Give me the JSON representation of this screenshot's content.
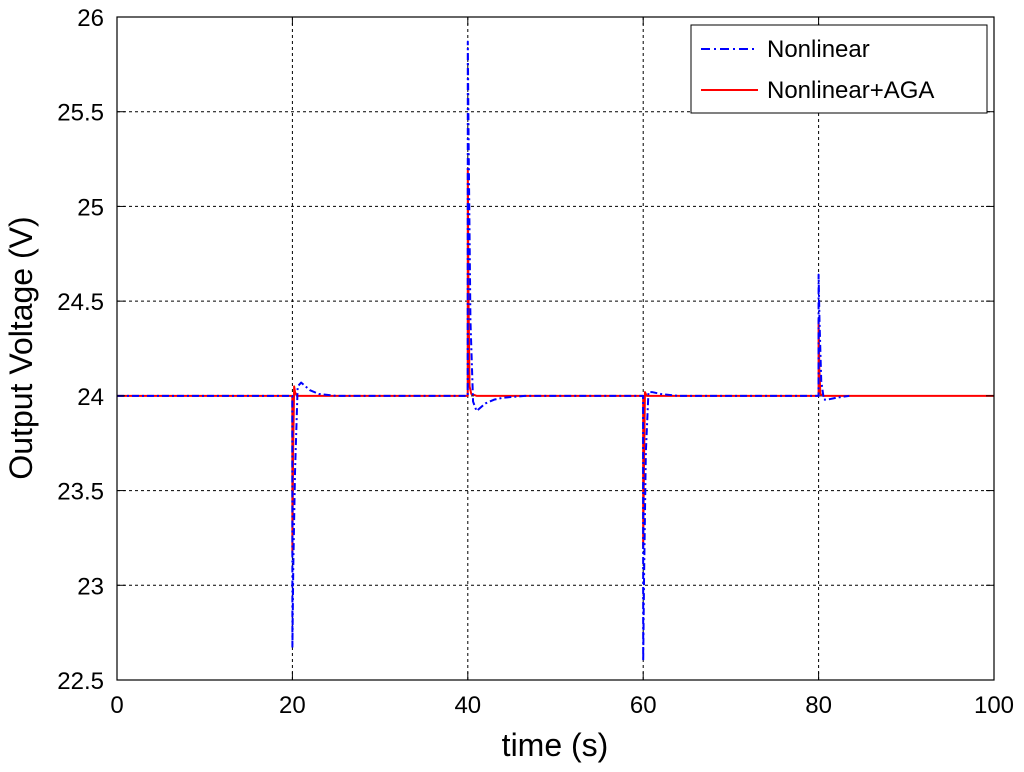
{
  "chart_data": {
    "type": "line",
    "title": "",
    "xlabel": "time (s)",
    "ylabel": "Output Voltage (V)",
    "xlim": [
      0,
      100
    ],
    "ylim": [
      22.5,
      26
    ],
    "xticks": [
      0,
      20,
      40,
      60,
      80,
      100
    ],
    "yticks": [
      22.5,
      23,
      23.5,
      24,
      24.5,
      25,
      25.5,
      26
    ],
    "xtick_labels": [
      "0",
      "20",
      "40",
      "60",
      "80",
      "100"
    ],
    "ytick_labels": [
      "22.5",
      "23",
      "23.5",
      "24",
      "24.5",
      "25",
      "25.5",
      "26"
    ],
    "grid": true,
    "legend_position": "top-right",
    "series": [
      {
        "name": "Nonlinear",
        "color": "#0000ff",
        "style": "dash-dot",
        "x": [
          0,
          19.99,
          20.0,
          20.1,
          20.3,
          20.6,
          21.0,
          22.0,
          23.0,
          25.0,
          28.0,
          39.99,
          40.0,
          40.1,
          40.3,
          40.6,
          41.0,
          42.0,
          43.0,
          44.0,
          46.5,
          59.99,
          60.0,
          60.1,
          60.3,
          60.6,
          61.0,
          62.0,
          64.0,
          68.0,
          79.99,
          80.0,
          80.1,
          80.3,
          80.6,
          81.0,
          82.0,
          83.5
        ],
        "y": [
          24.0,
          24.0,
          22.67,
          23.1,
          23.6,
          24.05,
          24.07,
          24.03,
          24.01,
          24.0,
          24.0,
          24.0,
          25.87,
          25.3,
          24.4,
          23.97,
          23.92,
          23.96,
          23.98,
          23.99,
          24.0,
          24.0,
          22.6,
          23.05,
          23.7,
          24.02,
          24.02,
          24.01,
          24.0,
          24.0,
          24.0,
          24.64,
          24.4,
          24.08,
          23.98,
          23.98,
          23.99,
          24.0
        ]
      },
      {
        "name": "Nonlinear+AGA",
        "color": "#ff0000",
        "style": "solid",
        "x": [
          0,
          19.99,
          20.0,
          20.08,
          20.2,
          20.3,
          20.5,
          21.0,
          39.99,
          40.0,
          40.08,
          40.2,
          40.4,
          41.0,
          60.0,
          60.0,
          60.08,
          60.2,
          60.4,
          61.0,
          80.0,
          80.0,
          80.08,
          80.2,
          80.5,
          81.0,
          100
        ],
        "y": [
          24.0,
          24.0,
          23.17,
          23.7,
          24.05,
          24.02,
          24.0,
          24.0,
          24.0,
          25.2,
          24.5,
          24.05,
          24.01,
          24.0,
          24.0,
          23.2,
          23.6,
          24.02,
          24.0,
          24.0,
          24.0,
          24.4,
          24.15,
          24.01,
          24.0,
          24.0,
          24.0
        ]
      }
    ]
  }
}
